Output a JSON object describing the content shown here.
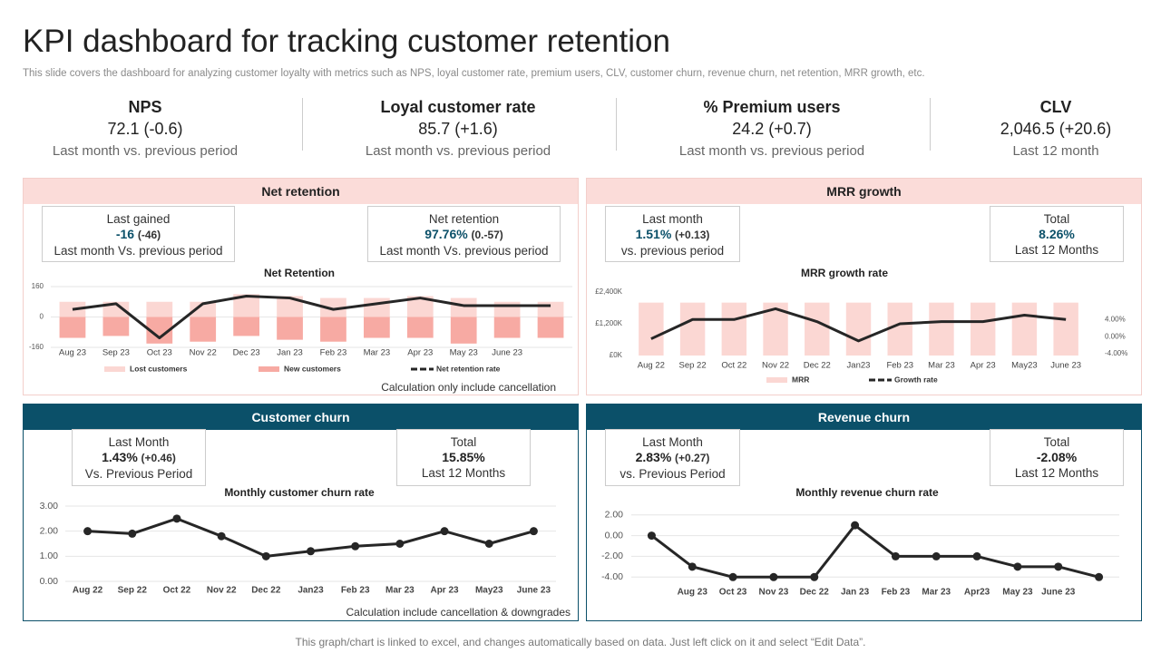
{
  "header": {
    "title": "KPI dashboard for tracking customer retention",
    "subtitle": "This slide covers the dashboard for analyzing customer loyalty with metrics such as NPS, loyal customer rate, premium users, CLV, customer churn, revenue churn, net retention, MRR growth, etc."
  },
  "kpis": [
    {
      "label": "NPS",
      "value": "72.1 (-0.6)",
      "note": "Last month vs. previous period"
    },
    {
      "label": "Loyal customer  rate",
      "value": "85.7 (+1.6)",
      "note": "Last month vs. previous period"
    },
    {
      "label": "% Premium users",
      "value": "24.2 (+0.7)",
      "note": "Last month vs. previous period"
    },
    {
      "label": "CLV",
      "value": "2,046.5 (+20.6)",
      "note": "Last 12 month"
    }
  ],
  "panels": [
    {
      "title": "Net retention",
      "note": "Calculation  only include cancellation",
      "boxes": [
        {
          "label": "Last gained",
          "value": "-16",
          "change": "(-46)",
          "note": "Last month Vs. previous  period"
        },
        {
          "label": "Net retention",
          "value": "97.76%",
          "change": "(0.-57)",
          "note": "Last month Vs. previous  period"
        }
      ]
    },
    {
      "title": "MRR growth",
      "boxes": [
        {
          "label": "Last month",
          "value": "1.51%",
          "change": "(+0.13)",
          "note": "vs. previous  period"
        },
        {
          "label": "Total",
          "value": "8.26%",
          "note": "Last 12 Months"
        }
      ]
    },
    {
      "title": "Customer churn",
      "note": "Calculation  include cancellation  & downgrades",
      "boxes": [
        {
          "label": "Last Month",
          "value": "1.43%",
          "change": "(+0.46)",
          "note": "Vs. Previous  Period"
        },
        {
          "label": "Total",
          "value": "15.85%",
          "note": "Last 12 Months"
        }
      ]
    },
    {
      "title": "Revenue  churn",
      "boxes": [
        {
          "label": "Last Month",
          "value": "2.83%",
          "change": "(+0.27)",
          "note": "vs. Previous  Period"
        },
        {
          "label": "Total",
          "value": "-2.08%",
          "note": "Last 12 Months"
        }
      ]
    }
  ],
  "chart_data": [
    {
      "type": "bar",
      "title": "Net Retention",
      "categories": [
        "Aug 23",
        "Sep 23",
        "Oct 23",
        "Nov 22",
        "Dec 23",
        "Jan 23",
        "Feb 23",
        "Mar 23",
        "Apr 23",
        "May 23",
        "June 23",
        null
      ],
      "series": [
        {
          "name": "Lost customers",
          "color": "#fbd7d3",
          "values": [
            80,
            80,
            80,
            80,
            120,
            110,
            100,
            100,
            110,
            100,
            80,
            80
          ]
        },
        {
          "name": "New customers",
          "color": "#f7aaa3",
          "values": [
            -110,
            -100,
            -140,
            -130,
            -100,
            -120,
            -130,
            -110,
            -110,
            -140,
            -110,
            -110
          ]
        },
        {
          "name": "Net retention rate",
          "type": "line",
          "color": "#262626",
          "values": [
            40,
            70,
            -110,
            70,
            110,
            100,
            40,
            70,
            100,
            60,
            60,
            60
          ]
        }
      ],
      "ylim": [
        -160,
        160
      ],
      "yticks": [
        160,
        0,
        -160
      ],
      "grid": true,
      "legend": "bottom"
    },
    {
      "type": "bar",
      "title": "MRR  growth rate",
      "categories": [
        "Aug 22",
        "Sep 22",
        "Oct 22",
        "Nov 22",
        "Dec 22",
        "Jan23",
        "Feb 23",
        "Mar 23",
        "Apr 23",
        "May23",
        "June 23"
      ],
      "series": [
        {
          "name": "MRR",
          "color": "#fbd7d3",
          "values": [
            2000,
            2000,
            2000,
            2000,
            2000,
            2000,
            2000,
            2000,
            2000,
            2000,
            2000
          ]
        },
        {
          "name": "Growth rate",
          "type": "line",
          "axis": "y2",
          "color": "#262626",
          "values": [
            -0.5,
            4,
            4,
            6.5,
            3.5,
            -1,
            3,
            3.5,
            3.5,
            5,
            4
          ]
        }
      ],
      "ylim": [
        0,
        2400
      ],
      "yticks": [
        {
          "value": 2400,
          "label": "£2,400K"
        },
        {
          "value": 1200,
          "label": "£1,200K"
        },
        {
          "value": 0,
          "label": "£0K"
        }
      ],
      "y2lim": [
        -4.4,
        10.4
      ],
      "y2ticks": [
        {
          "value": 4,
          "label": "4.00%"
        },
        {
          "value": 0,
          "label": "0.00%"
        },
        {
          "value": -4,
          "label": "-4.00%"
        }
      ],
      "grid": false,
      "legend": "bottom"
    },
    {
      "type": "line",
      "title": "Monthly customer churn rate",
      "categories": [
        "Aug 22",
        "Sep 22",
        "Oct 22",
        "Nov 22",
        "Dec 22",
        "Jan23",
        "Feb 23",
        "Mar 23",
        "Apr 23",
        "May23",
        "June 23"
      ],
      "values": [
        2.0,
        1.9,
        2.5,
        1.8,
        1.0,
        1.2,
        1.4,
        1.5,
        2.0,
        1.5,
        2.0
      ],
      "color": "#262626",
      "ylim": [
        0,
        3
      ],
      "yticks": [
        {
          "value": 3,
          "label": "3.00"
        },
        {
          "value": 2,
          "label": "2.00"
        },
        {
          "value": 1,
          "label": "1.00"
        },
        {
          "value": 0,
          "label": "0.00"
        }
      ],
      "grid": true,
      "markers": true
    },
    {
      "type": "line",
      "title": "Monthly revenue churn rate",
      "categories": [
        null,
        "Aug 23",
        "Oct 23",
        "Nov 23",
        "Dec 22",
        "Jan 23",
        "Feb 23",
        "Mar 23",
        "Apr23",
        "May 23",
        "June 23",
        null
      ],
      "values": [
        0,
        -3,
        -4,
        -4,
        -4,
        1,
        -2,
        -2,
        -2,
        -3,
        -3,
        -4
      ],
      "color": "#262626",
      "ylim": [
        -4.5,
        2.5
      ],
      "yticks": [
        {
          "value": 2,
          "label": "2.00"
        },
        {
          "value": 0,
          "label": "0.00"
        },
        {
          "value": -2,
          "label": "-2.00"
        },
        {
          "value": -4,
          "label": "-4.00"
        }
      ],
      "grid": true,
      "markers": true
    }
  ],
  "footer": "This graph/chart is linked to excel,  and changes automatically based on data. Just left click on it and select “Edit Data”."
}
